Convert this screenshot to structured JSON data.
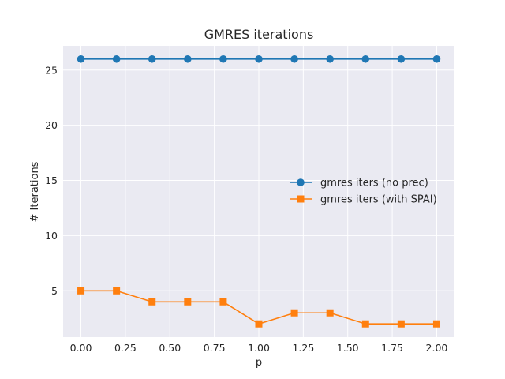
{
  "chart_data": {
    "type": "line",
    "title": "GMRES iterations",
    "xlabel": "p",
    "ylabel": "# Iterations",
    "x": [
      0.0,
      0.2,
      0.4,
      0.6,
      0.8,
      1.0,
      1.2,
      1.4,
      1.6,
      1.8,
      2.0
    ],
    "series": [
      {
        "name": "gmres iters (no prec)",
        "values": [
          26,
          26,
          26,
          26,
          26,
          26,
          26,
          26,
          26,
          26,
          26
        ],
        "color": "#1f77b4",
        "marker": "circle"
      },
      {
        "name": "gmres iters (with SPAI)",
        "values": [
          5,
          5,
          4,
          4,
          4,
          2,
          3,
          3,
          2,
          2,
          2
        ],
        "color": "#ff7f0e",
        "marker": "square"
      }
    ],
    "xlim": [
      -0.1,
      2.1
    ],
    "ylim": [
      0.8,
      27.2
    ],
    "xticks": [
      "0.00",
      "0.25",
      "0.50",
      "0.75",
      "1.00",
      "1.25",
      "1.50",
      "1.75",
      "2.00"
    ],
    "yticks": [
      "5",
      "10",
      "15",
      "20",
      "25"
    ],
    "grid": true,
    "legend_position": "center-right",
    "background_color": "#eaeaf2",
    "grid_color": "#ffffff"
  }
}
